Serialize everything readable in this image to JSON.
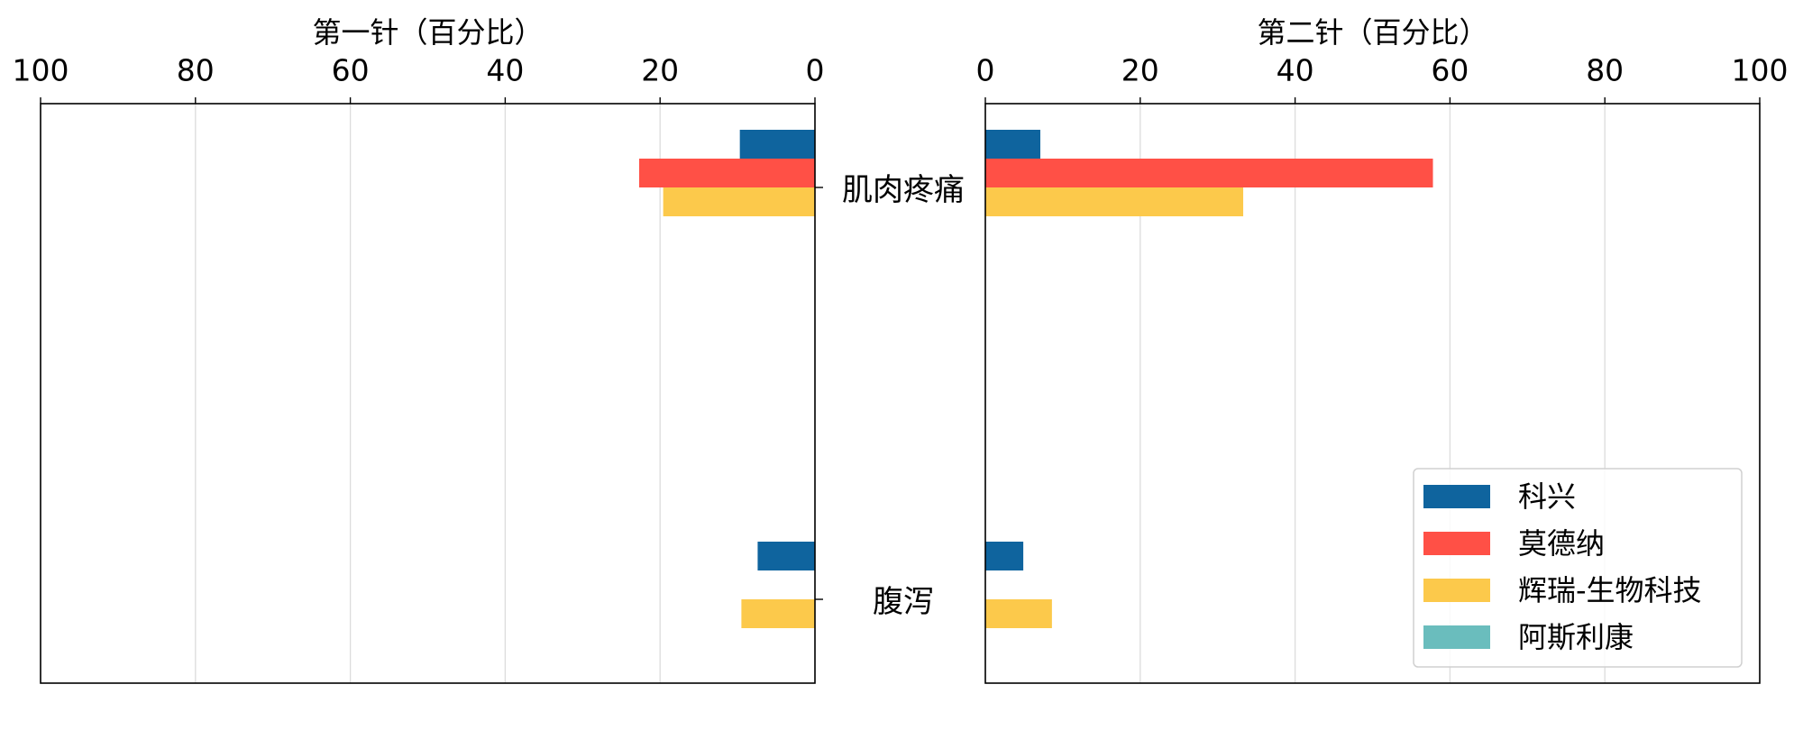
{
  "chart_data": {
    "type": "bar",
    "orientation": "horizontal",
    "grid": true,
    "categories": [
      "肌肉疼痛",
      "腹泻"
    ],
    "series": [
      {
        "name": "科兴",
        "color": "#0f649e"
      },
      {
        "name": "莫德纳",
        "color": "#ff5046"
      },
      {
        "name": "辉瑞-生物科技",
        "color": "#fcc94b"
      },
      {
        "name": "阿斯利康",
        "color": "#6abdbd"
      }
    ],
    "panels": [
      {
        "xlabel": "第一针（百分比）",
        "xlim": [
          100,
          0
        ],
        "xticks": [
          100,
          80,
          60,
          40,
          20,
          0
        ],
        "values": [
          [
            9.7,
            7.4
          ],
          [
            22.7,
            0
          ],
          [
            19.6,
            9.5
          ],
          [
            0,
            0
          ]
        ]
      },
      {
        "xlabel": "第二针（百分比）",
        "xlim": [
          0,
          100
        ],
        "xticks": [
          0,
          20,
          40,
          60,
          80,
          100
        ],
        "legend": "lower-right",
        "values": [
          [
            7.1,
            4.9
          ],
          [
            57.8,
            0
          ],
          [
            33.3,
            8.6
          ],
          [
            0,
            0
          ]
        ]
      }
    ]
  }
}
